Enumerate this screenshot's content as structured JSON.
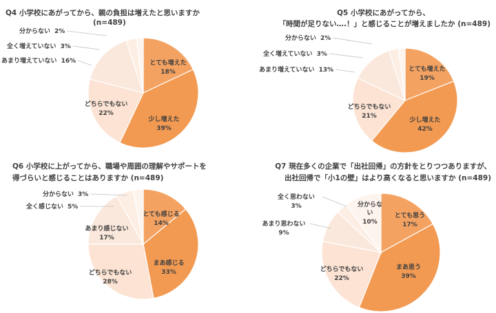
{
  "colors": {
    "s0": "#f4a261",
    "s1": "#f29a52",
    "s2": "#fce3d3",
    "s3": "#fbe8dc",
    "s4": "#fdeee4",
    "s5": "#fef4ee",
    "text": "#404040"
  },
  "chart_data": [
    {
      "type": "pie",
      "title_lines": [
        "Q4 小学校にあがってから、親の負担は増えたと思いますか",
        "(n=489)"
      ],
      "slices": [
        {
          "label": "とても増えた",
          "value": 18,
          "value_text": "18%"
        },
        {
          "label": "少し増えた",
          "value": 39,
          "value_text": "39%"
        },
        {
          "label": "どちらでもない",
          "value": 22,
          "value_text": "22%"
        },
        {
          "label": "あまり増えていない",
          "value": 16,
          "value_text": "16%"
        },
        {
          "label": "全く増えていない",
          "value": 3,
          "value_text": "3%"
        },
        {
          "label": "分からない",
          "value": 2,
          "value_text": "2%"
        }
      ]
    },
    {
      "type": "pie",
      "title_lines": [
        "Q5 小学校にあがってから、",
        "「時間が足りない….！」と感じることが増えましたか (n=489)"
      ],
      "slices": [
        {
          "label": "とても増えた",
          "value": 19,
          "value_text": "19%"
        },
        {
          "label": "少し増えた",
          "value": 42,
          "value_text": "42%"
        },
        {
          "label": "どちらでもない",
          "value": 21,
          "value_text": "21%"
        },
        {
          "label": "あまり増えていない",
          "value": 13,
          "value_text": "13%"
        },
        {
          "label": "全く増えていない",
          "value": 3,
          "value_text": "3%"
        },
        {
          "label": "分からない",
          "value": 2,
          "value_text": "2%"
        }
      ]
    },
    {
      "type": "pie",
      "title_lines": [
        "Q6 小学校に上がってから、職場や周囲の理解やサポートを",
        "得づらいと感じることはありますか (n=489)"
      ],
      "slices": [
        {
          "label": "とても感じる",
          "value": 14,
          "value_text": "14%"
        },
        {
          "label": "まあ感じる",
          "value": 33,
          "value_text": "33%"
        },
        {
          "label": "どちらでもない",
          "value": 28,
          "value_text": "28%"
        },
        {
          "label": "あまり感じない",
          "value": 17,
          "value_text": "17%"
        },
        {
          "label": "全く感じない",
          "value": 5,
          "value_text": "5%"
        },
        {
          "label": "分からない",
          "value": 3,
          "value_text": "3%"
        }
      ]
    },
    {
      "type": "pie",
      "title_lines": [
        "Q7 現在多くの企業で「出社回帰」の方針をとりつつありますが、",
        "出社回帰で「小1の壁」はより高くなると思いますか (n=489)"
      ],
      "slices": [
        {
          "label": "とても思う",
          "value": 17,
          "value_text": "17%"
        },
        {
          "label": "まあ思う",
          "value": 39,
          "value_text": "39%"
        },
        {
          "label": "どちらでもない",
          "value": 22,
          "value_text": "22%"
        },
        {
          "label": "あまり思わない",
          "value": 9,
          "value_text": "9%"
        },
        {
          "label": "全く思わない",
          "value": 3,
          "value_text": "3%"
        },
        {
          "label": "分からない",
          "value": 10,
          "value_text": "10%"
        }
      ]
    }
  ]
}
